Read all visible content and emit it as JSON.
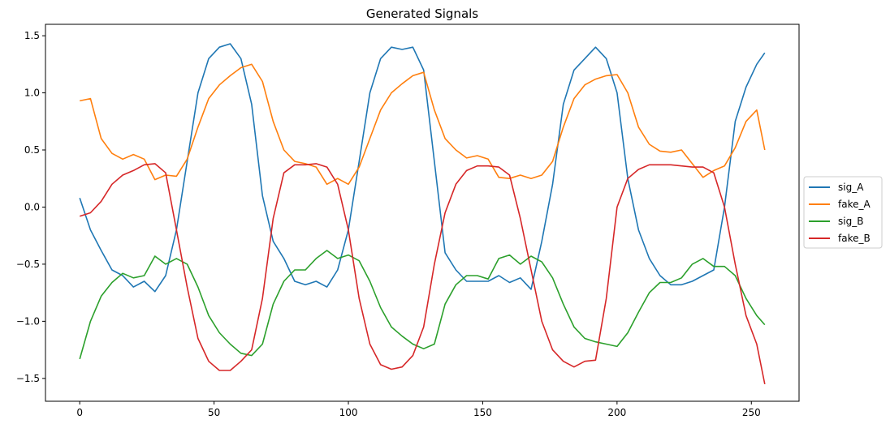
{
  "chart_data": {
    "type": "line",
    "title": "Generated Signals",
    "xlabel": "",
    "ylabel": "",
    "xlim": [
      -12.75,
      267.75
    ],
    "ylim": [
      -1.7,
      1.6
    ],
    "xticks": [
      0,
      50,
      100,
      150,
      200,
      250
    ],
    "xtick_labels": [
      "0",
      "50",
      "100",
      "150",
      "200",
      "250"
    ],
    "yticks": [
      -1.5,
      -1.0,
      -0.5,
      0.0,
      0.5,
      1.0,
      1.5
    ],
    "ytick_labels": [
      "−1.5",
      "−1.0",
      "−0.5",
      "0.0",
      "0.5",
      "1.0",
      "1.5"
    ],
    "grid": false,
    "legend_position": "center-right-outside",
    "x": [
      0,
      4,
      8,
      12,
      16,
      20,
      24,
      28,
      32,
      36,
      40,
      44,
      48,
      52,
      56,
      60,
      64,
      68,
      72,
      76,
      80,
      84,
      88,
      92,
      96,
      100,
      104,
      108,
      112,
      116,
      120,
      124,
      128,
      132,
      136,
      140,
      144,
      148,
      152,
      156,
      160,
      164,
      168,
      172,
      176,
      180,
      184,
      188,
      192,
      196,
      200,
      204,
      208,
      212,
      216,
      220,
      224,
      228,
      232,
      236,
      240,
      244,
      248,
      252,
      255
    ],
    "series": [
      {
        "name": "sig_A",
        "color": "#1f77b4",
        "values": [
          0.08,
          -0.2,
          -0.38,
          -0.55,
          -0.6,
          -0.7,
          -0.65,
          -0.74,
          -0.6,
          -0.2,
          0.4,
          1.0,
          1.3,
          1.4,
          1.43,
          1.3,
          0.9,
          0.1,
          -0.3,
          -0.45,
          -0.65,
          -0.68,
          -0.65,
          -0.7,
          -0.55,
          -0.2,
          0.4,
          1.0,
          1.3,
          1.4,
          1.38,
          1.4,
          1.2,
          0.4,
          -0.4,
          -0.55,
          -0.65,
          -0.65,
          -0.65,
          -0.6,
          -0.66,
          -0.62,
          -0.72,
          -0.3,
          0.2,
          0.9,
          1.2,
          1.3,
          1.4,
          1.3,
          1.0,
          0.25,
          -0.2,
          -0.45,
          -0.6,
          -0.68,
          -0.68,
          -0.65,
          -0.6,
          -0.55,
          0.0,
          0.75,
          1.05,
          1.25,
          1.35
        ]
      },
      {
        "name": "fake_A",
        "color": "#ff7f0e",
        "values": [
          0.93,
          0.95,
          0.6,
          0.47,
          0.42,
          0.46,
          0.42,
          0.24,
          0.28,
          0.27,
          0.42,
          0.7,
          0.95,
          1.07,
          1.15,
          1.22,
          1.25,
          1.1,
          0.75,
          0.5,
          0.4,
          0.38,
          0.35,
          0.2,
          0.25,
          0.2,
          0.35,
          0.6,
          0.85,
          1.0,
          1.08,
          1.15,
          1.18,
          0.85,
          0.6,
          0.5,
          0.43,
          0.45,
          0.42,
          0.26,
          0.25,
          0.28,
          0.25,
          0.28,
          0.4,
          0.7,
          0.95,
          1.07,
          1.12,
          1.15,
          1.16,
          1.0,
          0.7,
          0.55,
          0.49,
          0.48,
          0.5,
          0.38,
          0.26,
          0.32,
          0.36,
          0.52,
          0.75,
          0.85,
          0.5
        ]
      },
      {
        "name": "sig_B",
        "color": "#2ca02c",
        "values": [
          -1.33,
          -1.0,
          -0.78,
          -0.66,
          -0.58,
          -0.62,
          -0.6,
          -0.43,
          -0.5,
          -0.45,
          -0.5,
          -0.7,
          -0.95,
          -1.1,
          -1.2,
          -1.28,
          -1.3,
          -1.2,
          -0.85,
          -0.65,
          -0.55,
          -0.55,
          -0.45,
          -0.38,
          -0.45,
          -0.42,
          -0.47,
          -0.65,
          -0.88,
          -1.05,
          -1.13,
          -1.2,
          -1.24,
          -1.2,
          -0.85,
          -0.68,
          -0.6,
          -0.6,
          -0.63,
          -0.45,
          -0.42,
          -0.5,
          -0.43,
          -0.48,
          -0.62,
          -0.85,
          -1.05,
          -1.15,
          -1.18,
          -1.2,
          -1.22,
          -1.1,
          -0.92,
          -0.75,
          -0.66,
          -0.66,
          -0.62,
          -0.5,
          -0.45,
          -0.52,
          -0.52,
          -0.6,
          -0.8,
          -0.95,
          -1.03
        ]
      },
      {
        "name": "fake_B",
        "color": "#d62728",
        "values": [
          -0.08,
          -0.05,
          0.05,
          0.2,
          0.28,
          0.32,
          0.37,
          0.38,
          0.3,
          -0.2,
          -0.7,
          -1.15,
          -1.35,
          -1.43,
          -1.43,
          -1.35,
          -1.25,
          -0.8,
          -0.1,
          0.3,
          0.37,
          0.37,
          0.38,
          0.35,
          0.2,
          -0.2,
          -0.8,
          -1.2,
          -1.38,
          -1.42,
          -1.4,
          -1.3,
          -1.05,
          -0.5,
          -0.05,
          0.2,
          0.32,
          0.36,
          0.36,
          0.35,
          0.28,
          -0.1,
          -0.55,
          -1.0,
          -1.25,
          -1.35,
          -1.4,
          -1.35,
          -1.34,
          -0.8,
          0.0,
          0.25,
          0.33,
          0.37,
          0.37,
          0.37,
          0.36,
          0.35,
          0.35,
          0.3,
          0.0,
          -0.5,
          -0.95,
          -1.2,
          -1.55
        ]
      }
    ]
  }
}
